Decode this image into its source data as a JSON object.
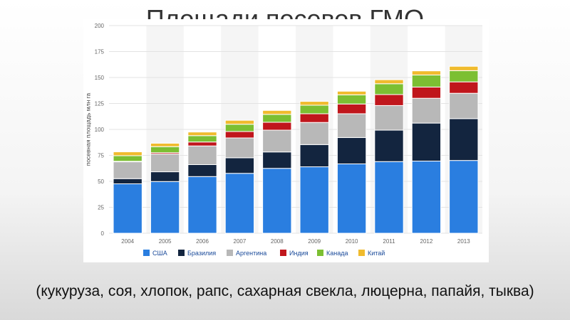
{
  "slide": {
    "title": "Площади посевов ГМО",
    "caption": "(кукуруза, соя, хлопок, рапс, сахарная свекла, люцерна, папайя, тыква)"
  },
  "chart_data": {
    "type": "bar",
    "stacked": true,
    "ylabel": "посевная площадь млн га",
    "xlabel": "",
    "ylim": [
      0,
      200
    ],
    "yticks": [
      0,
      25,
      50,
      75,
      100,
      125,
      150,
      175,
      200
    ],
    "grid": true,
    "legend_position": "bottom",
    "categories": [
      "2004",
      "2005",
      "2006",
      "2007",
      "2008",
      "2009",
      "2010",
      "2011",
      "2012",
      "2013"
    ],
    "series": [
      {
        "name": "США",
        "color": "#2a7ee0",
        "values": [
          47.6,
          49.8,
          54.6,
          57.7,
          62.5,
          64.0,
          66.8,
          69.0,
          69.5,
          70.1
        ]
      },
      {
        "name": "Бразилия",
        "color": "#13253f",
        "values": [
          5.0,
          9.4,
          11.5,
          15.0,
          15.8,
          21.4,
          25.4,
          30.3,
          36.6,
          40.3
        ]
      },
      {
        "name": "Аргентина",
        "color": "#b8b8b8",
        "values": [
          16.2,
          17.1,
          18.0,
          19.1,
          21.0,
          21.3,
          22.9,
          23.7,
          23.9,
          24.4
        ]
      },
      {
        "name": "Индия",
        "color": "#c0161c",
        "values": [
          0.5,
          1.3,
          3.8,
          6.2,
          7.6,
          8.4,
          9.4,
          10.6,
          10.8,
          11.0
        ]
      },
      {
        "name": "Канада",
        "color": "#7cbf32",
        "values": [
          5.4,
          5.8,
          6.1,
          7.0,
          7.6,
          8.2,
          8.8,
          10.4,
          11.6,
          10.8
        ]
      },
      {
        "name": "Китай",
        "color": "#f0bb2e",
        "values": [
          3.7,
          3.3,
          3.5,
          3.8,
          3.8,
          3.7,
          3.5,
          3.9,
          4.0,
          4.2
        ]
      }
    ]
  }
}
